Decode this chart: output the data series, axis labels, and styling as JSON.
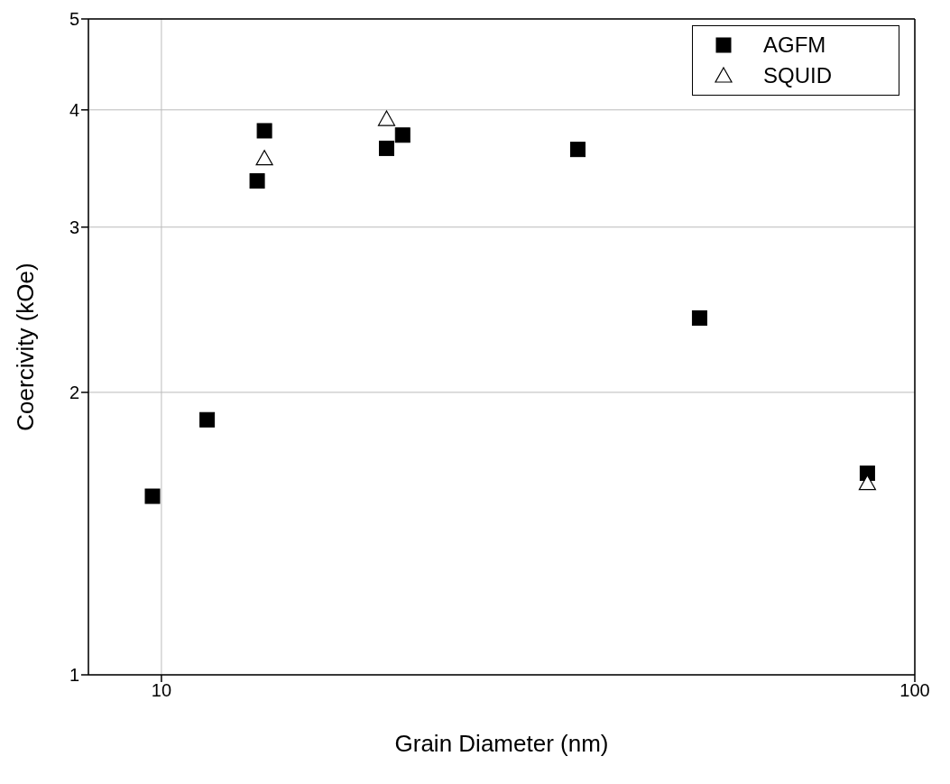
{
  "chart_data": {
    "type": "scatter",
    "xlabel": "Grain Diameter (nm)",
    "ylabel": "Coercivity (kOe)",
    "log": "xy",
    "xlim": [
      8,
      100
    ],
    "xticks": [
      10,
      100
    ],
    "ylim": [
      1,
      5
    ],
    "yticks": [
      1,
      2,
      3,
      4,
      5
    ],
    "grid": true,
    "legend": "top right",
    "series": [
      {
        "name": "AGFM",
        "color": "#000000",
        "marker": "square",
        "x": [
          9.73,
          11.5,
          13.4,
          13.7,
          19.9,
          20.9,
          35.7,
          51.8,
          86.5
        ],
        "values": [
          1.55,
          1.87,
          3.36,
          3.8,
          3.64,
          3.76,
          3.63,
          2.4,
          1.64
        ]
      },
      {
        "name": "SQUID",
        "color": "#ffffff",
        "marker": "triangle",
        "x": [
          13.7,
          19.9,
          86.5
        ],
        "values": [
          3.55,
          3.91,
          1.6
        ]
      }
    ]
  }
}
